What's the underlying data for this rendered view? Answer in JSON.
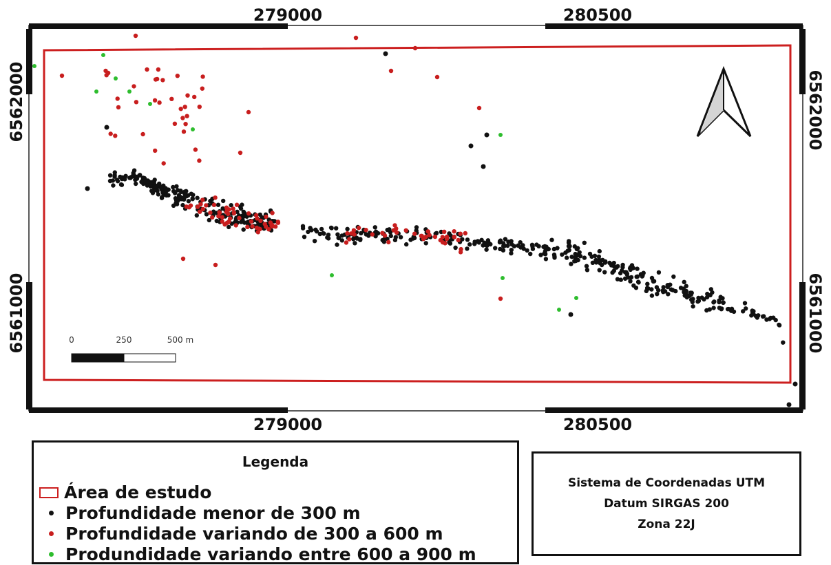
{
  "map": {
    "x_ticks": [
      "279000",
      "280500"
    ],
    "y_ticks": [
      "6562000",
      "6561000"
    ],
    "scale_bar": {
      "labels": [
        "0",
        "250",
        "500 m"
      ]
    },
    "north_arrow": {
      "icon": "north-arrow-icon"
    },
    "colors": {
      "study_area": "#cc1f1f",
      "shallow": "#111111",
      "medium": "#c81e1e",
      "deep": "#2ebd2e"
    }
  },
  "legend": {
    "title": "Legenda",
    "items": [
      {
        "label": "Área de estudo",
        "symbol": "red-rectangle"
      },
      {
        "label": "Profundidade menor de 300 m",
        "symbol": "black-dot"
      },
      {
        "label": "Profundidade variando de 300 a 600 m",
        "symbol": "red-dot"
      },
      {
        "label": "Produndidade variando entre 600 a 900 m",
        "symbol": "green-dot"
      }
    ]
  },
  "crs_info": {
    "line1": "Sistema de Coordenadas UTM",
    "line2": "Datum SIRGAS 200",
    "line3": "Zona 22J"
  }
}
